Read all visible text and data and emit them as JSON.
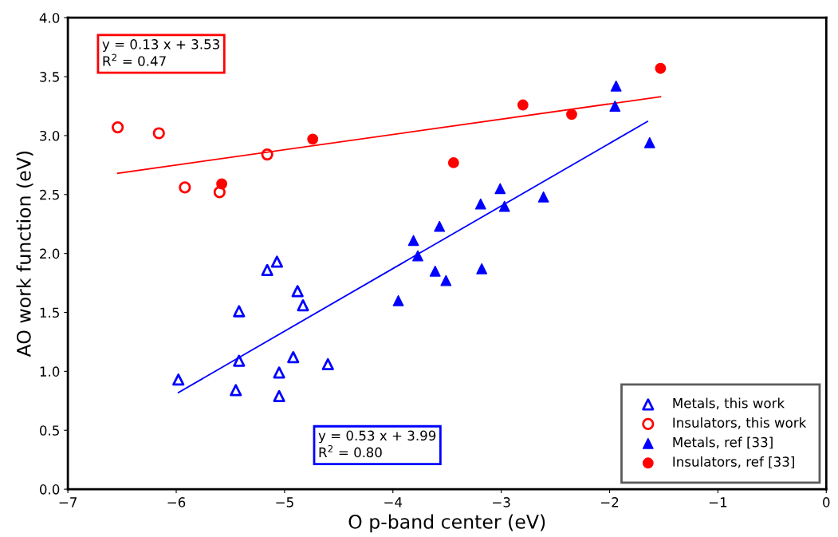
{
  "chart_data": {
    "type": "scatter",
    "xlabel": "O p-band center (eV)",
    "ylabel": "AO work function (eV)",
    "xlim": [
      -7,
      0
    ],
    "ylim": [
      0,
      4
    ],
    "xticks": [
      {
        "value": -7,
        "label": "−7"
      },
      {
        "value": -6,
        "label": "−6"
      },
      {
        "value": -5,
        "label": "−5"
      },
      {
        "value": -4,
        "label": "−4"
      },
      {
        "value": -3,
        "label": "−3"
      },
      {
        "value": -2,
        "label": "−2"
      },
      {
        "value": -1,
        "label": "−1"
      },
      0
    ],
    "yticks": [
      {
        "value": 0,
        "label": "0.0"
      },
      0.5,
      {
        "value": 1,
        "label": "1.0"
      },
      1.5,
      {
        "value": 2,
        "label": "2.0"
      },
      2.5,
      {
        "value": 3,
        "label": "3.0"
      },
      3.5,
      {
        "value": 4,
        "label": "4.0"
      }
    ],
    "grid": false,
    "legend": "bottom right",
    "series": [
      {
        "name": "Metals, this work",
        "color": "#0000ff",
        "marker": "triangle",
        "x": [
          -5.98,
          -5.42,
          -5.42,
          -5.45,
          -5.16,
          -5.07,
          -4.88,
          -4.83,
          -4.92,
          -5.05,
          -5.05,
          -4.6
        ],
        "values": [
          0.93,
          1.51,
          1.09,
          0.84,
          1.86,
          1.93,
          1.68,
          1.56,
          1.12,
          0.99,
          0.79,
          1.06
        ]
      },
      {
        "name": "Insulators, this work",
        "color": "#ff0000",
        "marker": "circle",
        "x": [
          -6.54,
          -6.16,
          -5.92,
          -5.6,
          -5.16
        ],
        "values": [
          3.07,
          3.02,
          2.56,
          2.52,
          2.84
        ]
      },
      {
        "name": "Metals, ref [33]",
        "color": "#0000ff",
        "marker": "triangle",
        "x": [
          -3.95,
          -3.81,
          -3.77,
          -3.57,
          -3.61,
          -3.51,
          -3.19,
          -3.18,
          -3.01,
          -2.97,
          -2.61,
          -1.94,
          -1.95,
          -1.63
        ],
        "values": [
          1.6,
          2.11,
          1.98,
          2.23,
          1.85,
          1.77,
          2.42,
          1.87,
          2.55,
          2.4,
          2.48,
          3.42,
          3.25,
          2.94
        ]
      },
      {
        "name": "Insulators, ref [33]",
        "color": "#ff0000",
        "marker": "circle",
        "x": [
          -5.58,
          -4.74,
          -3.44,
          -2.8,
          -2.35,
          -1.53
        ],
        "values": [
          2.59,
          2.97,
          2.77,
          3.26,
          3.18,
          3.57
        ]
      },
      {
        "type": "line",
        "color": "#ff0000",
        "x": [
          -6.54,
          -1.53
        ],
        "values": [
          2.68,
          3.33
        ]
      },
      {
        "type": "line",
        "color": "#0000ff",
        "x": [
          -5.98,
          -1.65
        ],
        "values": [
          0.82,
          3.12
        ]
      }
    ],
    "annotations": [
      "y = 0.13 x + 3.53\nR$^{2}$ = 0.47",
      "y = 0.53 x + 3.99\nR$^{2}$ = 0.80"
    ]
  }
}
